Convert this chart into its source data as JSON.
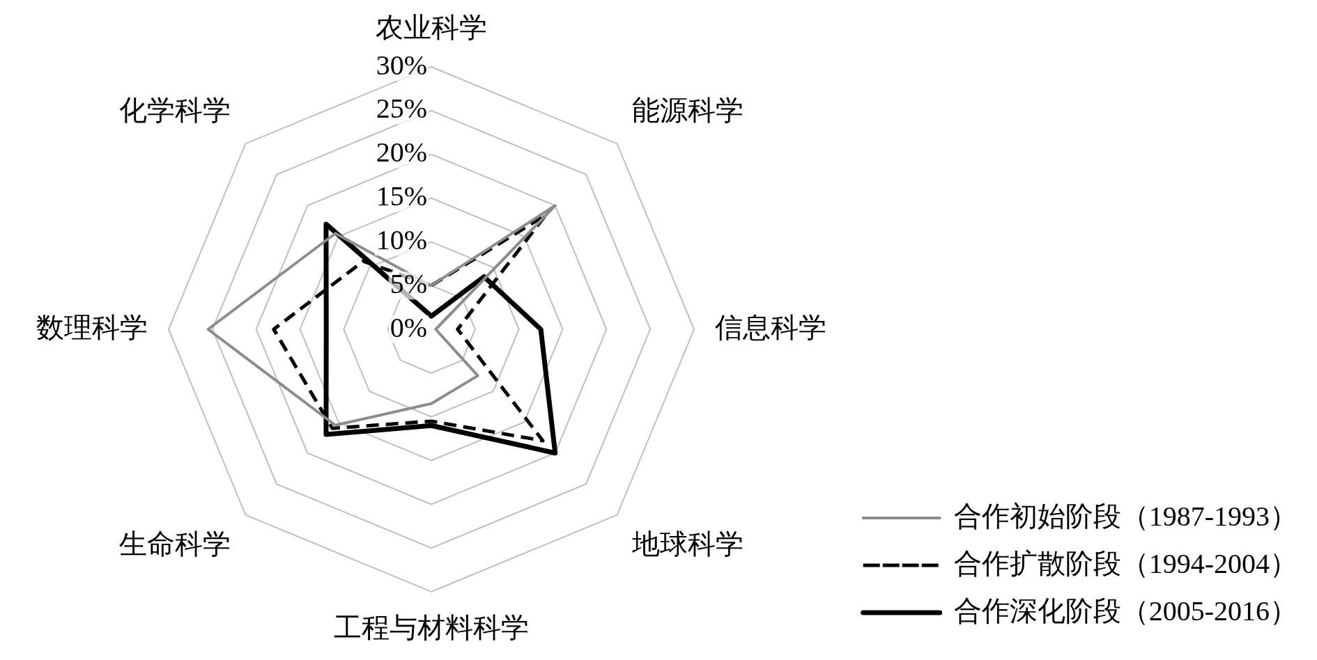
{
  "chart_data": {
    "type": "radar",
    "categories": [
      "农业科学",
      "能源科学",
      "信息科学",
      "地球科学",
      "工程与材料科学",
      "生命科学",
      "数理科学",
      "化学科学"
    ],
    "ylim": [
      0,
      30
    ],
    "yticks": [
      {
        "value": 0,
        "label": "0%"
      },
      {
        "value": 5,
        "label": "5%"
      },
      {
        "value": 10,
        "label": "10%"
      },
      {
        "value": 15,
        "label": "15%"
      },
      {
        "value": 20,
        "label": "20%"
      },
      {
        "value": 25,
        "label": "25%"
      },
      {
        "value": 30,
        "label": "30%"
      }
    ],
    "grid": true,
    "legend": "bottom right",
    "marker": "none",
    "series": [
      {
        "name": "合作初始阶段（1987-1993）",
        "color": "#8c8c8c",
        "line_style": "solid",
        "values": [
          5,
          20,
          0.5,
          7.5,
          8.5,
          15.5,
          25.5,
          15.5
        ]
      },
      {
        "name": "合作扩散阶段（1994-2004）",
        "color": "#000000",
        "line_style": "dashed",
        "values": [
          5,
          18.5,
          3,
          18,
          10.5,
          16,
          18,
          11
        ]
      },
      {
        "name": "合作深化阶段（2005-2016）",
        "color": "#000000",
        "line_style": "solid",
        "values": [
          1.5,
          8.5,
          12.5,
          20,
          11,
          17,
          12,
          17
        ]
      }
    ]
  }
}
